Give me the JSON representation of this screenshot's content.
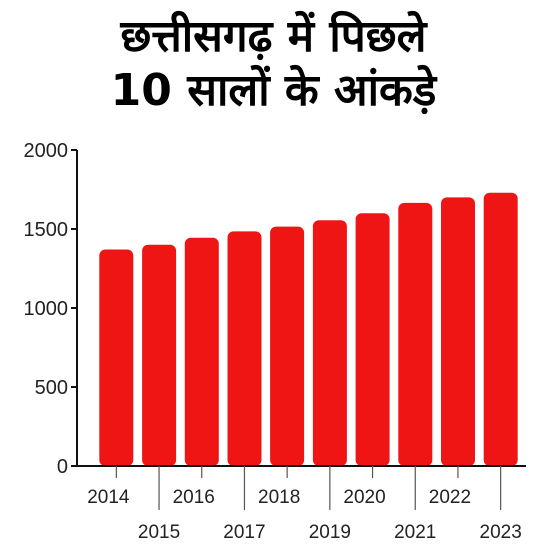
{
  "title_lines": [
    "छत्तीसगढ़ में पिछले",
    "10 सालों के आंकड़े"
  ],
  "colors": {
    "bar": "#f01515",
    "axis": "#111111",
    "background": "#ffffff"
  },
  "chart_data": {
    "type": "bar",
    "title": "छत्तीसगढ़ में पिछले 10 सालों के आंकड़े",
    "categories": [
      "2014",
      "2015",
      "2016",
      "2017",
      "2018",
      "2019",
      "2020",
      "2021",
      "2022",
      "2023"
    ],
    "values": [
      1370,
      1400,
      1445,
      1485,
      1515,
      1555,
      1600,
      1665,
      1700,
      1730
    ],
    "ylim": [
      0,
      2000
    ],
    "yticks": [
      "0",
      "500",
      "1000",
      "1500",
      "2000"
    ],
    "grid": false,
    "legend": "none"
  }
}
